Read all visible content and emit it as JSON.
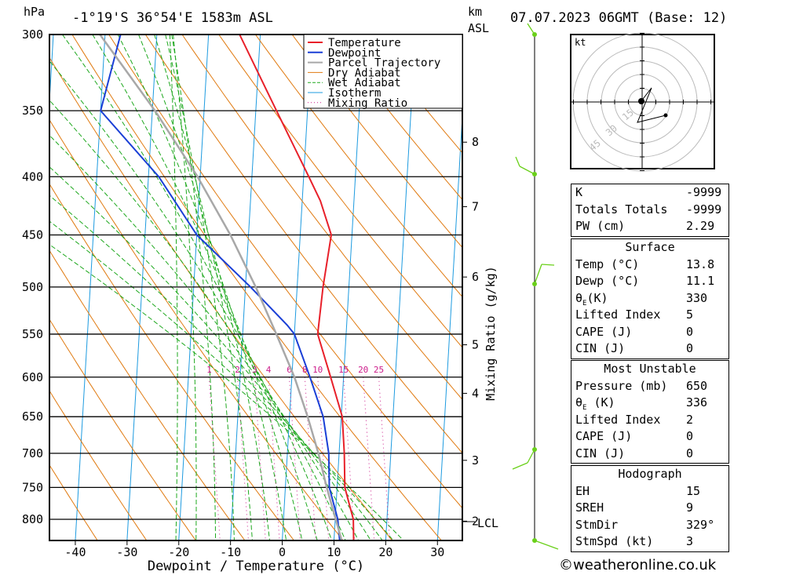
{
  "header": {
    "hpa_label": "hPa",
    "location": "-1°19'S  36°54'E  1583m  ASL",
    "km_label": "km",
    "asl_label": "ASL",
    "datetime": "07.07.2023  06GMT  (Base: 12)"
  },
  "axes": {
    "xlabel": "Dewpoint / Temperature (°C)",
    "mixing_label": "Mixing Ratio (g/kg)",
    "lcl_label": "LCL"
  },
  "legend": [
    "Temperature",
    "Dewpoint",
    "Parcel Trajectory",
    "Dry Adiabat",
    "Wet Adiabat",
    "Isotherm",
    "Mixing Ratio"
  ],
  "colors": {
    "temperature": "#e8202a",
    "dewpoint": "#1a3fd6",
    "parcel": "#a8a8a8",
    "dry_adiabat": "#e07a10",
    "wet_adiabat": "#1ea81e",
    "isotherm": "#1e9be0",
    "mixing_ratio": "#cc1a8a",
    "wind": "#6ad01a"
  },
  "chart_data": {
    "type": "line",
    "title": "-1°19'S 36°54'E 1583m ASL",
    "xlabel": "Dewpoint / Temperature (°C)",
    "ylabel": "hPa",
    "xlim": [
      -45,
      35
    ],
    "ylim": [
      835,
      300
    ],
    "y_scale": "log",
    "pressure_ticks": [
      300,
      350,
      400,
      450,
      500,
      550,
      600,
      650,
      700,
      750,
      800
    ],
    "temp_ticks": [
      -40,
      -30,
      -20,
      -10,
      0,
      10,
      20,
      30
    ],
    "km_ticks": [
      {
        "label": "8",
        "p": 373
      },
      {
        "label": "7",
        "p": 425
      },
      {
        "label": "6",
        "p": 490
      },
      {
        "label": "5",
        "p": 562
      },
      {
        "label": "4",
        "p": 620
      },
      {
        "label": "3",
        "p": 710
      },
      {
        "label": "2",
        "p": 803
      }
    ],
    "mixing_ratio_labels": [
      "1",
      "2",
      "3",
      "4",
      "6",
      "8",
      "10",
      "15",
      "20",
      "25"
    ],
    "series": [
      {
        "name": "Temperature",
        "p": [
          835,
          800,
          750,
          700,
          650,
          600,
          550,
          500,
          450,
          420,
          400,
          350,
          300
        ],
        "t": [
          13.8,
          13.5,
          11.5,
          11.0,
          10.2,
          7.5,
          4.5,
          5.0,
          6.0,
          3.5,
          1.0,
          -6.0,
          -14.0
        ]
      },
      {
        "name": "Dewpoint",
        "p": [
          835,
          800,
          750,
          700,
          650,
          600,
          550,
          540,
          500,
          450,
          400,
          350,
          300
        ],
        "t": [
          11.1,
          10.5,
          8.5,
          8.0,
          6.5,
          3.5,
          0.0,
          -1.5,
          -9.0,
          -20.0,
          -28.0,
          -40.0,
          -37.0
        ]
      },
      {
        "name": "Parcel Trajectory",
        "p": [
          835,
          750,
          700,
          650,
          600,
          550,
          500,
          450,
          400,
          350,
          300
        ],
        "t": [
          11.5,
          8.0,
          6.0,
          3.5,
          0.5,
          -3.5,
          -8.0,
          -13.5,
          -20.5,
          -29.5,
          -41.0
        ]
      }
    ],
    "indices": {
      "K": "-9999",
      "Totals Totals": "-9999",
      "PW (cm)": "2.29"
    },
    "surface": {
      "Temp (°C)": "13.8",
      "Dewp (°C)": "11.1",
      "θE(K)": "330",
      "Lifted Index": "5",
      "CAPE (J)": "0",
      "CIN (J)": "0"
    },
    "most_unstable": {
      "Pressure (mb)": "650",
      "θE (K)": "336",
      "Lifted Index": "2",
      "CAPE (J)": "0",
      "CIN (J)": "0"
    },
    "hodograph": {
      "EH": "15",
      "SREH": "9",
      "StmDir": "329°",
      "StmSpd (kt)": "3"
    },
    "hodograph_rings": [
      "15",
      "30",
      "45"
    ]
  },
  "panels": {
    "surface_title": "Surface",
    "mu_title": "Most Unstable",
    "hodo_title": "Hodograph",
    "kt_label": "kt"
  },
  "footer": {
    "copyright": "©weatheronline.co.uk"
  }
}
